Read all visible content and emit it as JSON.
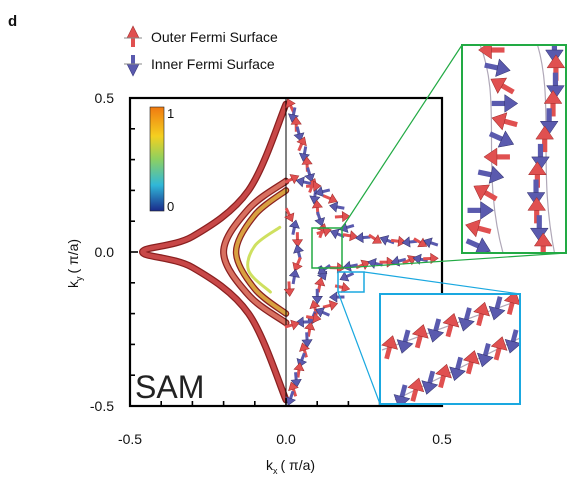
{
  "panel_label": "d",
  "legend": [
    {
      "label": "Outer Fermi Surface",
      "color": "#e05050"
    },
    {
      "label": "Inner Fermi Surface",
      "color": "#5a5aae"
    }
  ],
  "method_label": "SAM",
  "colorbar": {
    "max_label": "1",
    "min_label": "0",
    "colors": [
      "#f07a10",
      "#f4d020",
      "#8ed060",
      "#30b8d8",
      "#1a2a8a"
    ]
  },
  "chart_data": {
    "type": "line",
    "title": "",
    "xlabel": "k",
    "xlabel_sub": "x",
    "xlabel_unit": "( π/a)",
    "ylabel": "k",
    "ylabel_sub": "y",
    "ylabel_unit": "( π/a)",
    "xlim": [
      -0.5,
      0.5
    ],
    "ylim": [
      -0.5,
      0.5
    ],
    "xticks": [
      {
        "value": -0.5,
        "label": "-0.5"
      },
      {
        "value": 0.0,
        "label": "0.0"
      },
      {
        "value": 0.5,
        "label": "0.5"
      }
    ],
    "yticks": [
      {
        "value": 0.5,
        "label": "0.5"
      },
      {
        "value": 0.0,
        "label": "0.0"
      },
      {
        "value": -0.5,
        "label": "-0.5"
      }
    ],
    "series": [
      {
        "name": "Outer Fermi Surface",
        "color": "#c84848",
        "x": [
          0.0,
          -0.12,
          -0.3,
          -0.46,
          -0.3,
          -0.12,
          0.0
        ],
        "y": [
          0.48,
          0.2,
          0.05,
          0.0,
          -0.05,
          -0.2,
          -0.48
        ]
      },
      {
        "name": "Inner Fermi Surface",
        "color": "#d87060",
        "x": [
          0.0,
          -0.12,
          -0.2,
          -0.12,
          0.0
        ],
        "y": [
          0.23,
          0.14,
          0.0,
          -0.14,
          -0.23
        ]
      }
    ]
  }
}
